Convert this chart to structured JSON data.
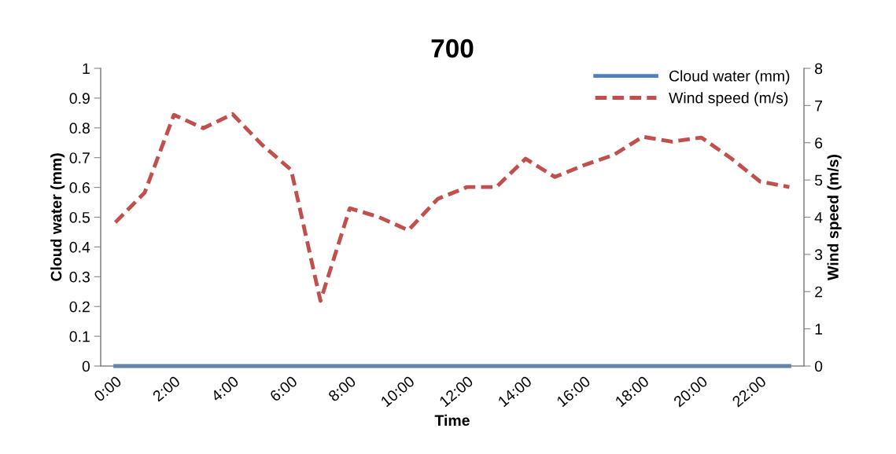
{
  "chart_data": {
    "type": "line",
    "title": "700",
    "xlabel": "Time",
    "ylabel": "Cloud water (mm)",
    "y2label": "Wind speed (m/s)",
    "categories": [
      "0:00",
      null,
      "2:00",
      null,
      "4:00",
      null,
      "6:00",
      null,
      "8:00",
      null,
      "10:00",
      null,
      "12:00",
      null,
      "14:00",
      null,
      "16:00",
      null,
      "18:00",
      null,
      "20:00",
      null,
      "22:00",
      null
    ],
    "series": [
      {
        "name": "Cloud water (mm)",
        "color": "#4f81bd",
        "line_style": "solid",
        "values": [
          0,
          0,
          0,
          0,
          0,
          0,
          0,
          0,
          0,
          0,
          0,
          0,
          0,
          0,
          0,
          0,
          0,
          0,
          0,
          0,
          0,
          0,
          0,
          0
        ]
      },
      {
        "name": "Wind speed (m/s)",
        "color": "#c0504d",
        "line_style": "dashed",
        "axis": "y2",
        "values": [
          3.86,
          4.66,
          6.75,
          6.39,
          6.77,
          5.95,
          5.27,
          1.75,
          4.24,
          4.0,
          3.65,
          4.49,
          4.81,
          4.81,
          5.57,
          5.08,
          5.4,
          5.67,
          6.16,
          6.03,
          6.14,
          5.59,
          4.96,
          4.81
        ]
      }
    ],
    "ylim": [
      0,
      1
    ],
    "yticks": [
      0,
      0.1,
      0.2,
      0.3,
      0.4,
      0.5,
      0.6,
      0.7,
      0.8,
      0.9,
      1
    ],
    "y2lim": [
      0,
      8
    ],
    "y2ticks": [
      0,
      1,
      2,
      3,
      4,
      5,
      6,
      7,
      8
    ],
    "grid": false,
    "legend": "top right",
    "marker": "none"
  }
}
